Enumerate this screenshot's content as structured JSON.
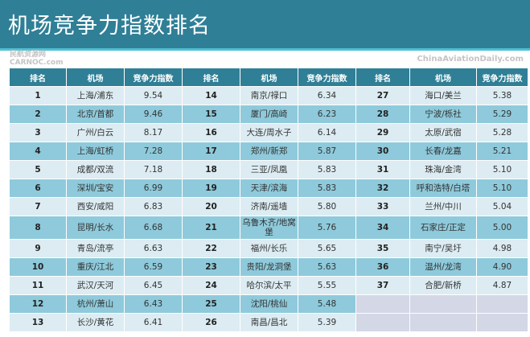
{
  "title": "机场竞争力指数排名",
  "headers": [
    "排名",
    "机场",
    "竞争力指数",
    "排名",
    "机场",
    "竞争力指数",
    "排名",
    "机场",
    "竞争力指数"
  ],
  "rows": [
    [
      [
        "1",
        "上海/浦东",
        "9.54"
      ],
      [
        "14",
        "南京/禄口",
        "6.34"
      ],
      [
        "27",
        "海口/美兰",
        "5.38"
      ]
    ],
    [
      [
        "2",
        "北京/首都",
        "9.46"
      ],
      [
        "15",
        "厦门/高崎",
        "6.23"
      ],
      [
        "28",
        "宁波/栎社",
        "5.29"
      ]
    ],
    [
      [
        "3",
        "广州/白云",
        "8.17"
      ],
      [
        "16",
        "大连/周水子",
        "6.14"
      ],
      [
        "29",
        "太原/武宿",
        "5.28"
      ]
    ],
    [
      [
        "4",
        "上海/虹桥",
        "7.28"
      ],
      [
        "17",
        "郑州/新郑",
        "5.87"
      ],
      [
        "30",
        "长春/龙嘉",
        "5.21"
      ]
    ],
    [
      [
        "5",
        "成都/双流",
        "7.18"
      ],
      [
        "18",
        "三亚/凤凰",
        "5.83"
      ],
      [
        "31",
        "珠海/金湾",
        "5.10"
      ]
    ],
    [
      [
        "6",
        "深圳/宝安",
        "6.99"
      ],
      [
        "19",
        "天津/滨海",
        "5.83"
      ],
      [
        "32",
        "呼和浩特/白塔",
        "5.10"
      ]
    ],
    [
      [
        "7",
        "西安/咸阳",
        "6.83"
      ],
      [
        "20",
        "济南/遥墙",
        "5.80"
      ],
      [
        "33",
        "兰州/中川",
        "5.04"
      ]
    ],
    [
      [
        "8",
        "昆明/长水",
        "6.68"
      ],
      [
        "21",
        "乌鲁木齐/地窝堡",
        "5.76"
      ],
      [
        "34",
        "石家庄/正定",
        "5.00"
      ]
    ],
    [
      [
        "9",
        "青岛/流亭",
        "6.63"
      ],
      [
        "22",
        "福州/长乐",
        "5.65"
      ],
      [
        "35",
        "南宁/吴圩",
        "4.98"
      ]
    ],
    [
      [
        "10",
        "重庆/江北",
        "6.59"
      ],
      [
        "23",
        "贵阳/龙洞堡",
        "5.63"
      ],
      [
        "36",
        "温州/龙湾",
        "4.90"
      ]
    ],
    [
      [
        "11",
        "武汉/天河",
        "6.45"
      ],
      [
        "24",
        "哈尔滨/太平",
        "5.55"
      ],
      [
        "37",
        "合肥/新桥",
        "4.87"
      ]
    ],
    [
      [
        "12",
        "杭州/萧山",
        "6.43"
      ],
      [
        "25",
        "沈阳/桃仙",
        "5.48"
      ]
    ],
    [
      [
        "13",
        "长沙/黄花",
        "6.41"
      ],
      [
        "26",
        "南昌/昌北",
        "5.39"
      ]
    ]
  ],
  "watermarks": {
    "left_cn": "民航资源网",
    "left_en": "CARNOC.com",
    "right": "ChinaAviationDaily.com"
  }
}
